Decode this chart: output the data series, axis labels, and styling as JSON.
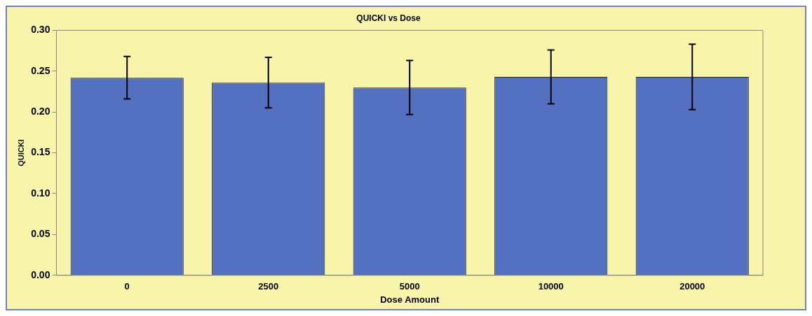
{
  "chart_data": {
    "type": "bar",
    "title": "QUICKI vs Dose",
    "xlabel": "Dose Amount",
    "ylabel": "QUICKI",
    "categories": [
      "0",
      "2500",
      "5000",
      "10000",
      "20000"
    ],
    "values": [
      0.242,
      0.236,
      0.23,
      0.243,
      0.243
    ],
    "errors": [
      0.026,
      0.031,
      0.033,
      0.033,
      0.04
    ],
    "color": "#5470c0",
    "ylim": [
      0,
      0.3
    ],
    "yticks": [
      {
        "value": 0,
        "label": "0.00"
      },
      {
        "value": 0.05,
        "label": "0.05"
      },
      {
        "value": 0.1,
        "label": "0.10"
      },
      {
        "value": 0.15,
        "label": "0.15"
      },
      {
        "value": 0.2,
        "label": "0.20"
      },
      {
        "value": 0.25,
        "label": "0.25"
      },
      {
        "value": 0.3,
        "label": "0.30"
      }
    ],
    "grid": false,
    "legend": false
  }
}
